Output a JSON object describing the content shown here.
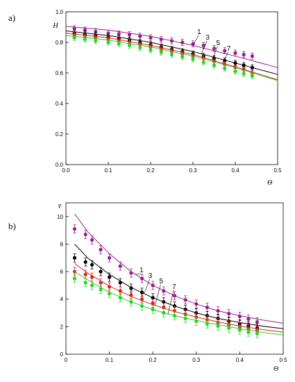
{
  "chart_data": [
    {
      "type": "scatter",
      "panel_label": "a)",
      "xlabel": "Θ",
      "ylabel": "H",
      "xlim": [
        0,
        0.5
      ],
      "ylim": [
        0,
        1.0
      ],
      "xticks": [
        0,
        0.1,
        0.2,
        0.3,
        0.4,
        0.5
      ],
      "xtick_labels": [
        "0.0",
        "0.1",
        "0.2",
        "0.3",
        "0.4",
        "0.5"
      ],
      "yticks": [
        0,
        0.2,
        0.4,
        0.6,
        0.8,
        1.0
      ],
      "ytick_labels": [
        "0.0",
        "0.2",
        "0.4",
        "0.6",
        "0.8",
        "1.0"
      ],
      "grid": false,
      "curve_labels": [
        {
          "text": "1",
          "series": 0,
          "at_x": 0.3
        },
        {
          "text": "3",
          "series": 1,
          "at_x": 0.32
        },
        {
          "text": "5",
          "series": 2,
          "at_x": 0.345
        },
        {
          "text": "7",
          "series": 3,
          "at_x": 0.37
        }
      ],
      "series": [
        {
          "color": "#9b1b8f",
          "x": [
            0.02,
            0.045,
            0.07,
            0.1,
            0.125,
            0.15,
            0.175,
            0.2,
            0.225,
            0.25,
            0.275,
            0.3,
            0.325,
            0.35,
            0.375,
            0.4,
            0.42,
            0.44
          ],
          "y": [
            0.89,
            0.88,
            0.87,
            0.86,
            0.855,
            0.85,
            0.84,
            0.83,
            0.82,
            0.81,
            0.8,
            0.79,
            0.78,
            0.76,
            0.745,
            0.73,
            0.72,
            0.71
          ],
          "err": 0.02,
          "fit": {
            "x": [
              0,
              0.1,
              0.2,
              0.3,
              0.4,
              0.5
            ],
            "y": [
              0.905,
              0.88,
              0.84,
              0.78,
              0.71,
              0.635
            ]
          }
        },
        {
          "color": "#000000",
          "x": [
            0.02,
            0.045,
            0.07,
            0.1,
            0.125,
            0.15,
            0.175,
            0.2,
            0.225,
            0.25,
            0.275,
            0.3,
            0.325,
            0.35,
            0.375,
            0.4,
            0.42,
            0.44
          ],
          "y": [
            0.86,
            0.855,
            0.845,
            0.835,
            0.825,
            0.815,
            0.8,
            0.785,
            0.77,
            0.755,
            0.74,
            0.725,
            0.71,
            0.695,
            0.68,
            0.665,
            0.65,
            0.635
          ],
          "err": 0.018,
          "fit": {
            "x": [
              0,
              0.1,
              0.2,
              0.3,
              0.4,
              0.5
            ],
            "y": [
              0.875,
              0.845,
              0.8,
              0.74,
              0.665,
              0.59
            ]
          }
        },
        {
          "color": "#e0201a",
          "x": [
            0.02,
            0.045,
            0.07,
            0.1,
            0.125,
            0.15,
            0.175,
            0.2,
            0.225,
            0.25,
            0.275,
            0.3,
            0.325,
            0.35,
            0.375,
            0.4,
            0.42,
            0.44
          ],
          "y": [
            0.85,
            0.84,
            0.83,
            0.82,
            0.81,
            0.8,
            0.785,
            0.77,
            0.755,
            0.74,
            0.725,
            0.71,
            0.695,
            0.675,
            0.655,
            0.635,
            0.62,
            0.6
          ],
          "err": 0.018,
          "fit": {
            "x": [
              0,
              0.1,
              0.2,
              0.3,
              0.4,
              0.5
            ],
            "y": [
              0.86,
              0.83,
              0.78,
              0.72,
              0.64,
              0.555
            ]
          }
        },
        {
          "color": "#25d325",
          "x": [
            0.02,
            0.045,
            0.07,
            0.1,
            0.125,
            0.15,
            0.175,
            0.2,
            0.225,
            0.25,
            0.275,
            0.3,
            0.325,
            0.35,
            0.375,
            0.4,
            0.42,
            0.44
          ],
          "y": [
            0.83,
            0.82,
            0.81,
            0.8,
            0.79,
            0.78,
            0.765,
            0.75,
            0.735,
            0.72,
            0.705,
            0.69,
            0.67,
            0.65,
            0.63,
            0.61,
            0.595,
            0.58
          ],
          "err": 0.018,
          "fit": {
            "x": [
              0,
              0.1,
              0.2,
              0.3,
              0.4,
              0.5
            ],
            "y": [
              0.845,
              0.815,
              0.77,
              0.71,
              0.635,
              0.55
            ]
          }
        }
      ]
    },
    {
      "type": "scatter",
      "panel_label": "b)",
      "xlabel": "Θ",
      "ylabel": "v̄",
      "xlim": [
        0,
        0.5
      ],
      "ylim": [
        0,
        11
      ],
      "xticks": [
        0,
        0.1,
        0.2,
        0.3,
        0.4,
        0.5
      ],
      "xtick_labels": [
        "0",
        "0.1",
        "0.2",
        "0.3",
        "0.4",
        "0.5"
      ],
      "yticks": [
        0,
        2,
        4,
        6,
        8,
        10
      ],
      "ytick_labels": [
        "0",
        "2",
        "4",
        "6",
        "8",
        "10"
      ],
      "grid": false,
      "curve_labels": [
        {
          "text": "1",
          "series": 0,
          "at_x": 0.16
        },
        {
          "text": "3",
          "series": 1,
          "at_x": 0.18
        },
        {
          "text": "5",
          "series": 2,
          "at_x": 0.205
        },
        {
          "text": "7",
          "series": 3,
          "at_x": 0.235
        }
      ],
      "series": [
        {
          "color": "#9b1b8f",
          "x": [
            0.02,
            0.045,
            0.06,
            0.08,
            0.1,
            0.125,
            0.15,
            0.175,
            0.2,
            0.225,
            0.25,
            0.275,
            0.3,
            0.325,
            0.35,
            0.375,
            0.4,
            0.42,
            0.44
          ],
          "y": [
            9.1,
            8.7,
            8.3,
            7.6,
            7.0,
            6.4,
            5.9,
            5.5,
            5.0,
            4.6,
            4.25,
            3.95,
            3.65,
            3.4,
            3.15,
            2.95,
            2.75,
            2.55,
            2.35
          ],
          "err": 0.3,
          "fit": {
            "x": [
              0.02,
              0.05,
              0.1,
              0.15,
              0.2,
              0.25,
              0.3,
              0.35,
              0.4,
              0.45,
              0.5
            ],
            "y": [
              10.2,
              8.9,
              7.3,
              6.0,
              5.0,
              4.25,
              3.65,
              3.15,
              2.8,
              2.5,
              2.25
            ]
          }
        },
        {
          "color": "#000000",
          "x": [
            0.02,
            0.045,
            0.06,
            0.08,
            0.1,
            0.125,
            0.15,
            0.175,
            0.2,
            0.225,
            0.25,
            0.275,
            0.3,
            0.325,
            0.35,
            0.375,
            0.4,
            0.42,
            0.44
          ],
          "y": [
            7.0,
            6.7,
            6.5,
            6.0,
            5.6,
            5.2,
            4.8,
            4.5,
            4.1,
            3.8,
            3.5,
            3.25,
            3.0,
            2.8,
            2.6,
            2.4,
            2.2,
            2.05,
            1.9
          ],
          "err": 0.3,
          "fit": {
            "x": [
              0.02,
              0.05,
              0.1,
              0.15,
              0.2,
              0.25,
              0.3,
              0.35,
              0.4,
              0.45,
              0.5
            ],
            "y": [
              8.0,
              7.0,
              5.8,
              4.85,
              4.1,
              3.5,
              3.0,
              2.6,
              2.3,
              2.05,
              1.85
            ]
          }
        },
        {
          "color": "#e0201a",
          "x": [
            0.02,
            0.045,
            0.06,
            0.08,
            0.1,
            0.125,
            0.15,
            0.175,
            0.2,
            0.225,
            0.25,
            0.275,
            0.3,
            0.325,
            0.35,
            0.375,
            0.4,
            0.42,
            0.44
          ],
          "y": [
            6.0,
            5.8,
            5.6,
            5.2,
            4.9,
            4.6,
            4.3,
            4.0,
            3.7,
            3.4,
            3.15,
            2.9,
            2.7,
            2.5,
            2.3,
            2.15,
            2.0,
            1.85,
            1.75
          ],
          "err": 0.3,
          "fit": {
            "x": [
              0.02,
              0.05,
              0.1,
              0.15,
              0.2,
              0.25,
              0.3,
              0.35,
              0.4,
              0.45,
              0.5
            ],
            "y": [
              6.6,
              5.9,
              4.95,
              4.2,
              3.6,
              3.1,
              2.7,
              2.35,
              2.05,
              1.8,
              1.6
            ]
          }
        },
        {
          "color": "#25d325",
          "x": [
            0.02,
            0.045,
            0.06,
            0.08,
            0.1,
            0.125,
            0.15,
            0.175,
            0.2,
            0.225,
            0.25,
            0.275,
            0.3,
            0.325,
            0.35,
            0.375,
            0.4,
            0.42,
            0.44
          ],
          "y": [
            5.5,
            5.2,
            5.0,
            4.7,
            4.4,
            4.1,
            3.8,
            3.5,
            3.25,
            3.0,
            2.8,
            2.6,
            2.4,
            2.2,
            2.05,
            1.9,
            1.75,
            1.6,
            1.5
          ],
          "err": 0.3,
          "fit": {
            "x": [
              0.02,
              0.05,
              0.1,
              0.15,
              0.2,
              0.25,
              0.3,
              0.35,
              0.4,
              0.45,
              0.5
            ],
            "y": [
              6.0,
              5.4,
              4.5,
              3.8,
              3.25,
              2.8,
              2.45,
              2.15,
              1.85,
              1.6,
              1.4
            ]
          }
        }
      ]
    }
  ]
}
